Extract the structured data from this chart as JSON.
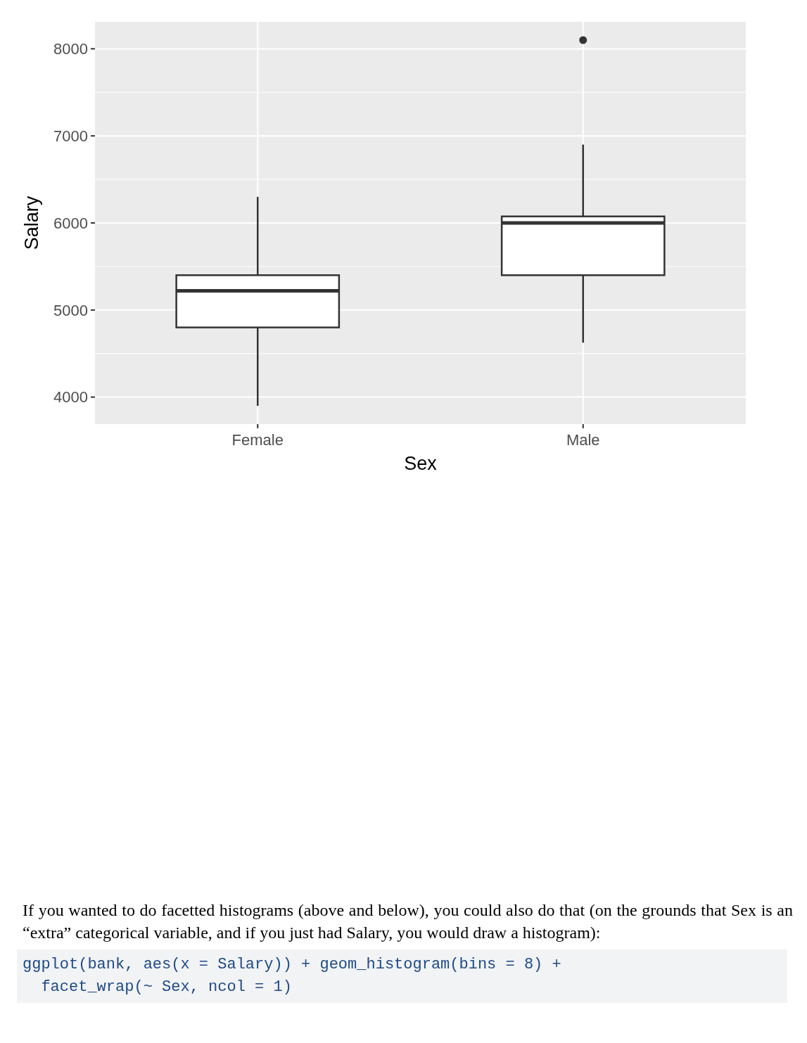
{
  "chart_data": {
    "type": "box",
    "xlabel": "Sex",
    "ylabel": "Salary",
    "categories": [
      "Female",
      "Male"
    ],
    "boxes": [
      {
        "low": 3900,
        "q1": 4800,
        "median": 5220,
        "q3": 5400,
        "high": 6300
      },
      {
        "low": 4625,
        "q1": 5400,
        "median": 6000,
        "q3": 6075,
        "high": 6900,
        "outliers": [
          8100
        ]
      }
    ],
    "ylim": [
      3690,
      8310
    ],
    "yticks": [
      4000,
      5000,
      6000,
      7000,
      8000
    ],
    "grid": true,
    "annotations": [
      "If you wanted to do facetted histograms (above and below), you could also do that (on the grounds that Sex is an “extra” categorical variable, and if you just had Salary, you would draw a histogram):",
      "ggplot(bank, aes(x = Salary)) + geom_histogram(bins = 8) +\n  facet_wrap(~ Sex, ncol = 1)"
    ]
  }
}
